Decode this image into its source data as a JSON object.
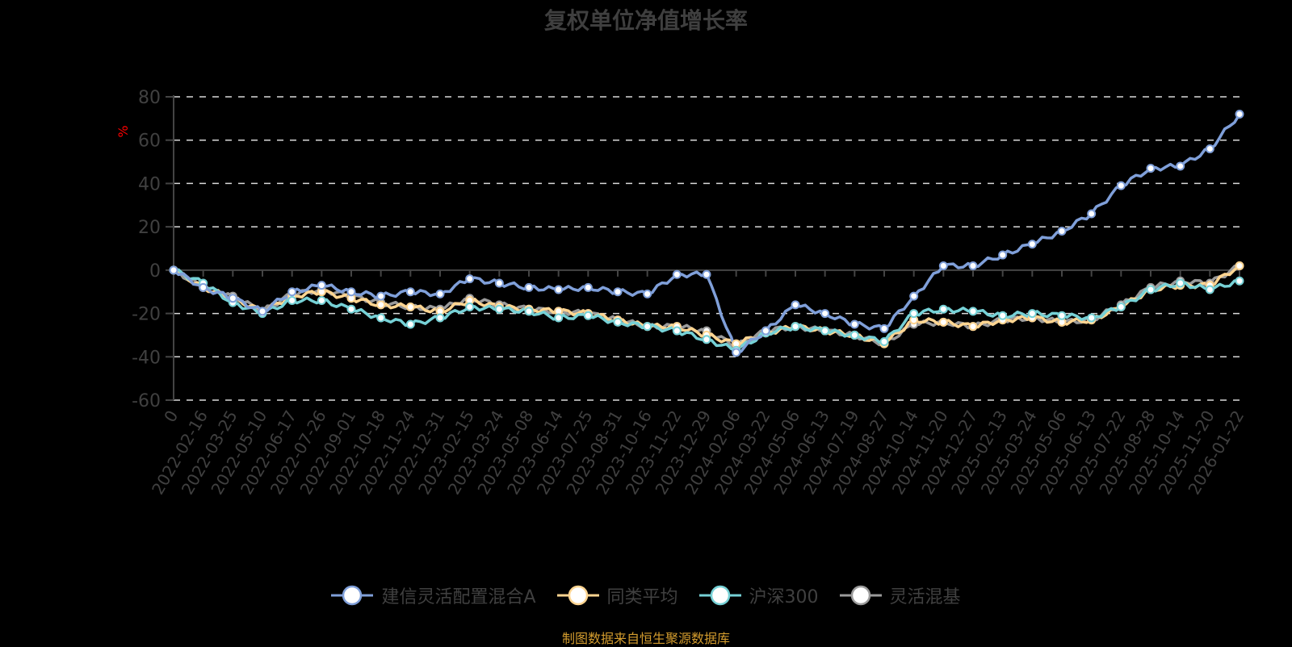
{
  "title": "复权单位净值增长率",
  "source": "制图数据来自恒生聚源数据库",
  "colors": {
    "fund": "#7f9fd9",
    "peer_avg": "#ffd591",
    "hs300": "#76d1d6",
    "flex_mixed": "#9b9b9b",
    "axis_text": "#404040",
    "grid": "#d9d9d9",
    "unit": "#ff0000"
  },
  "legend": [
    {
      "name": "建信灵活配置混合A",
      "color": "#7f9fd9"
    },
    {
      "name": "同类平均",
      "color": "#ffd591"
    },
    {
      "name": "沪深300",
      "color": "#76d1d6"
    },
    {
      "name": "灵活混基",
      "color": "#9b9b9b"
    }
  ],
  "chart_data": {
    "type": "line",
    "title": "复权单位净值增长率",
    "xlabel": "",
    "ylabel": "%",
    "ylim": [
      -60,
      80
    ],
    "yticks": [
      80,
      60,
      40,
      20,
      0,
      -20,
      -40,
      -60
    ],
    "grid": true,
    "legend_position": "bottom",
    "categories": [
      "0",
      "2022-02-16",
      "2022-03-25",
      "2022-05-10",
      "2022-06-17",
      "2022-07-26",
      "2022-09-01",
      "2022-10-18",
      "2022-11-24",
      "2022-12-31",
      "2023-02-15",
      "2023-03-24",
      "2023-05-08",
      "2023-06-14",
      "2023-07-25",
      "2023-08-31",
      "2023-10-16",
      "2023-11-22",
      "2023-12-29",
      "2024-02-06",
      "2024-03-22",
      "2024-05-06",
      "2024-06-13",
      "2024-07-19",
      "2024-08-27",
      "2024-10-14",
      "2024-11-20",
      "2024-12-27",
      "2025-02-13",
      "2025-03-24",
      "2025-05-06",
      "2025-06-13",
      "2025-07-22",
      "2025-08-28",
      "2025-10-14",
      "2025-11-20",
      "2026-01-22"
    ],
    "series": [
      {
        "name": "建信灵活配置混合A",
        "values": [
          0,
          -8,
          -13,
          -19,
          -10,
          -7,
          -10,
          -12,
          -10,
          -11,
          -4,
          -6,
          -8,
          -9,
          -8,
          -10,
          -11,
          -2,
          -2,
          -38,
          -28,
          -16,
          -20,
          -25,
          -27,
          -12,
          2,
          2,
          7,
          12,
          18,
          26,
          39,
          47,
          48,
          56,
          72
        ]
      },
      {
        "name": "同类平均",
        "values": [
          0,
          -8,
          -13,
          -19,
          -12,
          -10,
          -13,
          -16,
          -17,
          -19,
          -14,
          -17,
          -18,
          -19,
          -20,
          -23,
          -26,
          -26,
          -30,
          -34,
          -29,
          -26,
          -28,
          -30,
          -34,
          -23,
          -24,
          -26,
          -23,
          -22,
          -24,
          -23,
          -17,
          -9,
          -7,
          -7,
          2
        ]
      },
      {
        "name": "沪深300",
        "values": [
          0,
          -6,
          -15,
          -20,
          -14,
          -14,
          -18,
          -22,
          -25,
          -22,
          -17,
          -18,
          -19,
          -22,
          -21,
          -24,
          -26,
          -28,
          -32,
          -37,
          -29,
          -26,
          -28,
          -30,
          -33,
          -20,
          -18,
          -19,
          -21,
          -20,
          -21,
          -22,
          -17,
          -9,
          -6,
          -9,
          -5
        ]
      },
      {
        "name": "灵活混基",
        "values": [
          0,
          -8,
          -12,
          -19,
          -11,
          -9,
          -12,
          -15,
          -17,
          -18,
          -13,
          -16,
          -18,
          -19,
          -20,
          -23,
          -26,
          -26,
          -28,
          -35,
          -28,
          -26,
          -28,
          -30,
          -34,
          -25,
          -24,
          -26,
          -23,
          -22,
          -24,
          -23,
          -16,
          -8,
          -5,
          -6,
          2
        ]
      }
    ]
  }
}
